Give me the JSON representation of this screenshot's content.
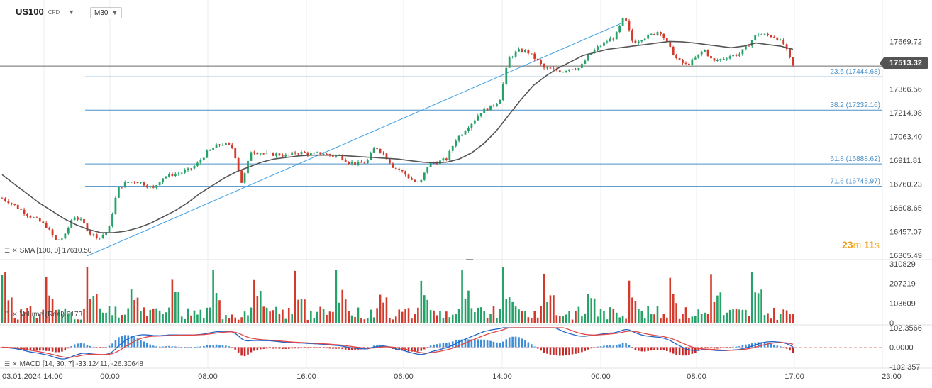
{
  "header": {
    "symbol": "US100",
    "symbol_type": "CFD",
    "interval": "M30"
  },
  "countdown": {
    "minutes": "23",
    "minutes_unit": "m",
    "seconds": "11",
    "seconds_unit": "s"
  },
  "current_price": "17513.32",
  "colors": {
    "up": "#26a269",
    "down": "#d33a2c",
    "fib_line": "#4a90c8",
    "trend_line": "#3da0e6",
    "sma": "#555555",
    "macd": "#1f63c6",
    "signal": "#e04646",
    "hist": "#3d8ed8"
  },
  "indicators": {
    "sma_label": "SMA [100, 0] 17610.50",
    "volume_label": "Volume (Real) 6173",
    "macd_label": "MACD [14, 30, 7] -33.12411, -26.30648"
  },
  "chart_data": [
    {
      "type": "candlestick",
      "title": "",
      "x_ticks": [
        "03.01.2024 14:00",
        "00:00",
        "08:00",
        "16:00",
        "06:00",
        "14:00",
        "00:00",
        "08:00",
        "17:00",
        "23:00"
      ],
      "y_ticks": [
        "17669.72",
        "17366.56",
        "17214.98",
        "17063.40",
        "16911.81",
        "16760.23",
        "16608.65",
        "16457.07",
        "16305.49"
      ],
      "ylim": [
        16305.49,
        17821.3
      ],
      "grid": true,
      "fib_levels": [
        {
          "label": "23.6 (17444.68)",
          "value": 17444.68
        },
        {
          "label": "38.2 (17232.16)",
          "value": 17232.16
        },
        {
          "label": "61.8 (16888.62)",
          "value": 16888.62
        },
        {
          "label": "71.6 (16745.97)",
          "value": 16745.97
        }
      ],
      "trend_line": {
        "from_value": 16300,
        "to_value": 17790
      },
      "close_path": [
        16670,
        16640,
        16600,
        16560,
        16530,
        16490,
        16400,
        16420,
        16560,
        16520,
        16440,
        16420,
        16470,
        16730,
        16770,
        16780,
        16760,
        16730,
        16800,
        16820,
        16830,
        16850,
        16890,
        16960,
        17000,
        17020,
        16990,
        16760,
        16970,
        16960,
        16950,
        16950,
        16940,
        16960,
        16960,
        16950,
        16960,
        16940,
        16940,
        16900,
        16890,
        16900,
        17000,
        16950,
        16870,
        16840,
        16790,
        16760,
        16890,
        16900,
        16920,
        17040,
        17100,
        17160,
        17230,
        17250,
        17300,
        17560,
        17610,
        17610,
        17560,
        17500,
        17490,
        17480,
        17500,
        17500,
        17580,
        17630,
        17670,
        17700,
        17830,
        17660,
        17690,
        17710,
        17740,
        17640,
        17550,
        17520,
        17560,
        17620,
        17540,
        17560,
        17580,
        17590,
        17650,
        17720,
        17710,
        17700,
        17650,
        17513
      ],
      "sma_path": [
        16820,
        16760,
        16700,
        16640,
        16590,
        16540,
        16500,
        16470,
        16450,
        16450,
        16460,
        16480,
        16510,
        16550,
        16590,
        16640,
        16700,
        16750,
        16800,
        16840,
        16870,
        16900,
        16920,
        16930,
        16940,
        16945,
        16945,
        16945,
        16940,
        16935,
        16930,
        16925,
        16920,
        16910,
        16900,
        16895,
        16900,
        16920,
        16960,
        17020,
        17100,
        17200,
        17300,
        17390,
        17450,
        17500,
        17540,
        17580,
        17600,
        17620,
        17630,
        17640,
        17650,
        17660,
        17670,
        17668,
        17660,
        17650,
        17640,
        17630,
        17640,
        17660,
        17650,
        17640,
        17620
      ]
    },
    {
      "type": "bar",
      "title": "Volume",
      "y_ticks": [
        "310829",
        "207219",
        "103609",
        "0"
      ],
      "ylim": [
        0,
        310829
      ]
    },
    {
      "type": "line",
      "title": "MACD",
      "y_ticks": [
        "102.3566",
        "0.0000",
        "-102.357"
      ],
      "ylim": [
        -102.357,
        102.3566
      ]
    }
  ]
}
